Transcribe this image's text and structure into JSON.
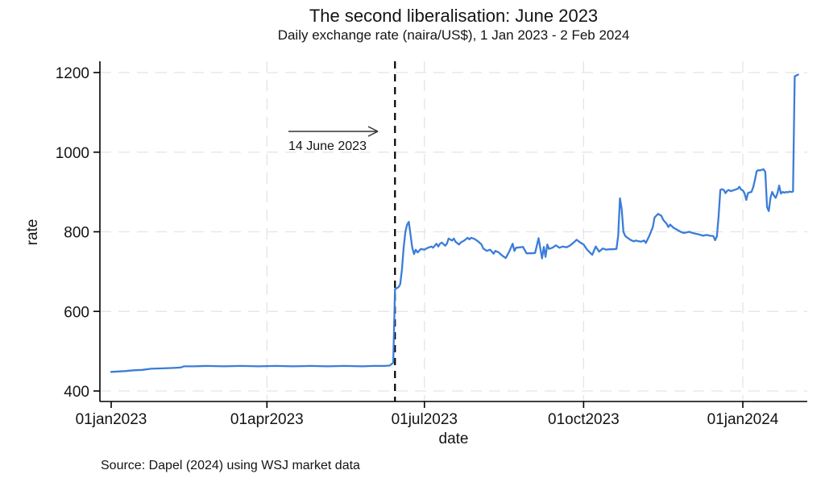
{
  "chart_data": {
    "type": "line",
    "title": "The second liberalisation: June 2023",
    "subtitle": "Daily exchange rate (naira/US$), 1 Jan 2023 - 2 Feb 2024",
    "xlabel": "date",
    "ylabel": "rate",
    "source_note": "Source: Dapel (2024) using WSJ market data",
    "annotation": {
      "label": "14 June 2023",
      "event_day": 164
    },
    "x_axis": {
      "unit": "days since 1 Jan 2023",
      "range_days": [
        0,
        397
      ],
      "ticks": [
        {
          "day": 0,
          "label": "01jan2023"
        },
        {
          "day": 90,
          "label": "01apr2023"
        },
        {
          "day": 181,
          "label": "01jul2023"
        },
        {
          "day": 273,
          "label": "01oct2023"
        },
        {
          "day": 365,
          "label": "01jan2024"
        }
      ]
    },
    "y_axis": {
      "range": [
        400,
        1200
      ],
      "ticks": [
        400,
        600,
        800,
        1000,
        1200
      ]
    },
    "grid": true,
    "legend": "none",
    "colors": {
      "line": "#3b7dd8",
      "vline": "#000000",
      "grid": "#e4e4e4",
      "axis": "#000000",
      "text": "#141414"
    },
    "series": [
      {
        "name": "naira per US$ daily exchange rate",
        "points": [
          [
            0,
            448
          ],
          [
            4,
            449
          ],
          [
            8,
            450
          ],
          [
            13,
            452
          ],
          [
            18,
            453
          ],
          [
            23,
            456
          ],
          [
            30,
            457
          ],
          [
            36,
            458
          ],
          [
            40,
            459
          ],
          [
            42,
            462
          ],
          [
            48,
            462
          ],
          [
            55,
            463
          ],
          [
            65,
            462
          ],
          [
            75,
            463
          ],
          [
            85,
            462
          ],
          [
            95,
            463
          ],
          [
            105,
            462
          ],
          [
            115,
            463
          ],
          [
            125,
            462
          ],
          [
            135,
            463
          ],
          [
            145,
            462
          ],
          [
            152,
            463
          ],
          [
            158,
            463
          ],
          [
            161,
            464
          ],
          [
            163,
            471
          ],
          [
            164,
            656
          ],
          [
            165,
            658
          ],
          [
            166,
            661
          ],
          [
            167,
            668
          ],
          [
            168,
            705
          ],
          [
            169,
            760
          ],
          [
            170,
            800
          ],
          [
            171,
            818
          ],
          [
            172,
            825
          ],
          [
            174,
            760
          ],
          [
            175,
            744
          ],
          [
            176,
            755
          ],
          [
            177,
            748
          ],
          [
            179,
            757
          ],
          [
            181,
            755
          ],
          [
            183,
            760
          ],
          [
            185,
            763
          ],
          [
            186,
            760
          ],
          [
            187,
            765
          ],
          [
            188,
            770
          ],
          [
            189,
            763
          ],
          [
            190,
            770
          ],
          [
            191,
            773
          ],
          [
            193,
            765
          ],
          [
            194,
            770
          ],
          [
            195,
            783
          ],
          [
            197,
            778
          ],
          [
            198,
            783
          ],
          [
            199,
            775
          ],
          [
            201,
            768
          ],
          [
            202,
            773
          ],
          [
            204,
            778
          ],
          [
            206,
            785
          ],
          [
            207,
            781
          ],
          [
            208,
            785
          ],
          [
            210,
            782
          ],
          [
            212,
            776
          ],
          [
            214,
            768
          ],
          [
            215,
            758
          ],
          [
            217,
            752
          ],
          [
            219,
            755
          ],
          [
            221,
            745
          ],
          [
            222,
            752
          ],
          [
            224,
            748
          ],
          [
            226,
            740
          ],
          [
            228,
            734
          ],
          [
            230,
            750
          ],
          [
            232,
            770
          ],
          [
            233,
            752
          ],
          [
            234,
            760
          ],
          [
            238,
            762
          ],
          [
            240,
            746
          ],
          [
            243,
            746
          ],
          [
            245,
            747
          ],
          [
            247,
            784
          ],
          [
            249,
            733
          ],
          [
            250,
            762
          ],
          [
            251,
            737
          ],
          [
            252,
            768
          ],
          [
            253,
            757
          ],
          [
            255,
            760
          ],
          [
            257,
            766
          ],
          [
            259,
            760
          ],
          [
            261,
            763
          ],
          [
            263,
            761
          ],
          [
            265,
            765
          ],
          [
            267,
            772
          ],
          [
            269,
            780
          ],
          [
            271,
            773
          ],
          [
            273,
            768
          ],
          [
            275,
            755
          ],
          [
            278,
            742
          ],
          [
            280,
            763
          ],
          [
            282,
            750
          ],
          [
            284,
            758
          ],
          [
            286,
            755
          ],
          [
            288,
            756
          ],
          [
            290,
            756
          ],
          [
            292,
            757
          ],
          [
            293,
            790
          ],
          [
            294,
            884
          ],
          [
            295,
            858
          ],
          [
            296,
            800
          ],
          [
            297,
            790
          ],
          [
            298,
            786
          ],
          [
            300,
            780
          ],
          [
            302,
            776
          ],
          [
            303,
            778
          ],
          [
            306,
            775
          ],
          [
            308,
            778
          ],
          [
            309,
            772
          ],
          [
            311,
            790
          ],
          [
            313,
            812
          ],
          [
            314,
            836
          ],
          [
            316,
            845
          ],
          [
            318,
            840
          ],
          [
            319,
            830
          ],
          [
            321,
            820
          ],
          [
            322,
            812
          ],
          [
            323,
            818
          ],
          [
            325,
            810
          ],
          [
            327,
            805
          ],
          [
            329,
            800
          ],
          [
            331,
            797
          ],
          [
            334,
            800
          ],
          [
            336,
            797
          ],
          [
            338,
            795
          ],
          [
            340,
            793
          ],
          [
            342,
            790
          ],
          [
            344,
            792
          ],
          [
            346,
            790
          ],
          [
            348,
            789
          ],
          [
            349,
            779
          ],
          [
            350,
            788
          ],
          [
            351,
            838
          ],
          [
            352,
            905
          ],
          [
            353,
            907
          ],
          [
            354,
            905
          ],
          [
            355,
            897
          ],
          [
            356,
            903
          ],
          [
            357,
            905
          ],
          [
            358,
            902
          ],
          [
            360,
            905
          ],
          [
            362,
            908
          ],
          [
            363,
            913
          ],
          [
            364,
            906
          ],
          [
            365,
            904
          ],
          [
            366,
            897
          ],
          [
            367,
            880
          ],
          [
            368,
            897
          ],
          [
            369,
            899
          ],
          [
            370,
            900
          ],
          [
            371,
            912
          ],
          [
            372,
            930
          ],
          [
            373,
            952
          ],
          [
            374,
            955
          ],
          [
            375,
            954
          ],
          [
            376,
            956
          ],
          [
            377,
            957
          ],
          [
            378,
            950
          ],
          [
            379,
            862
          ],
          [
            380,
            852
          ],
          [
            381,
            886
          ],
          [
            382,
            900
          ],
          [
            383,
            891
          ],
          [
            384,
            885
          ],
          [
            385,
            897
          ],
          [
            386,
            916
          ],
          [
            387,
            896
          ],
          [
            388,
            900
          ],
          [
            389,
            898
          ],
          [
            390,
            900
          ],
          [
            391,
            899
          ],
          [
            392,
            901
          ],
          [
            393,
            900
          ],
          [
            394,
            901
          ],
          [
            395,
            1190
          ],
          [
            396,
            1193
          ],
          [
            397,
            1195
          ]
        ]
      }
    ]
  }
}
